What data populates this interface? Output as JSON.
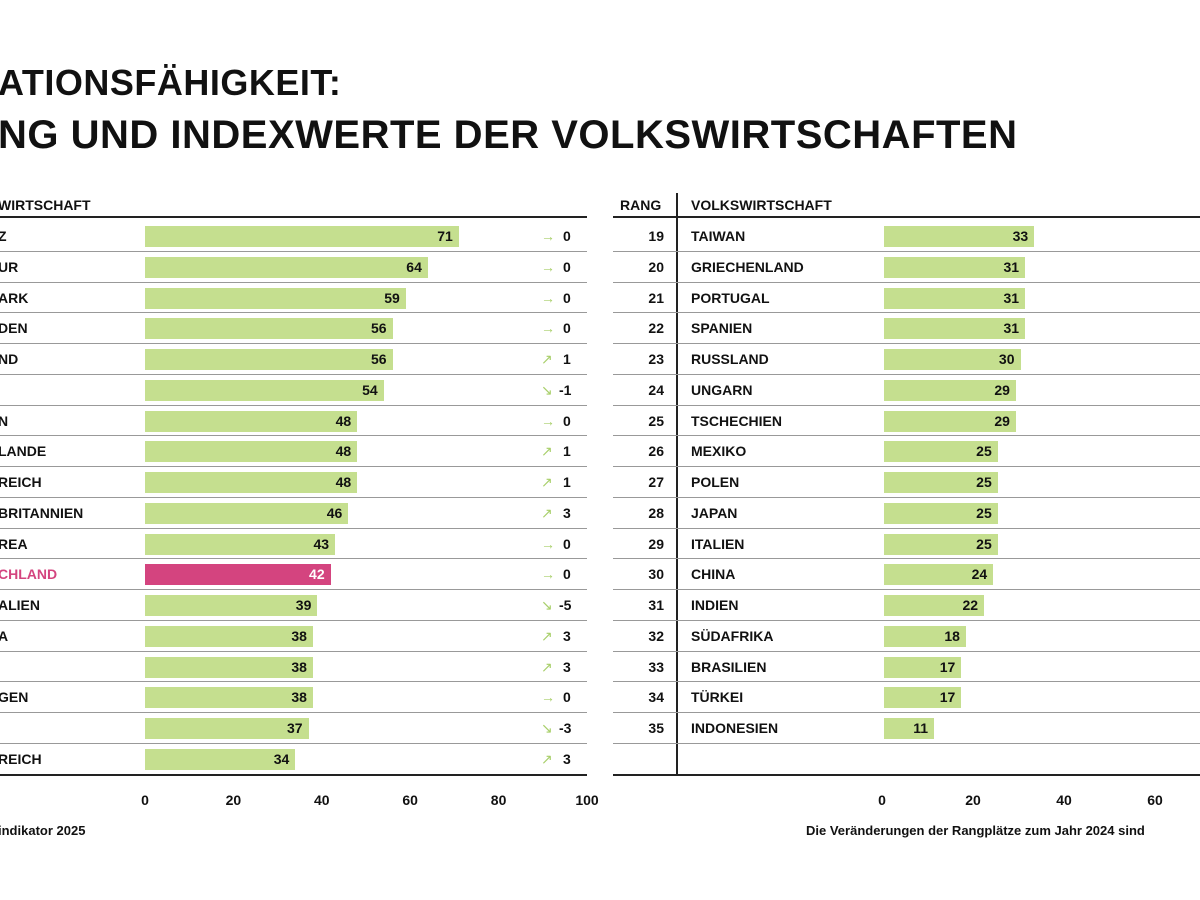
{
  "title": {
    "line1": "ATIONSFÄHIGKEIT:",
    "line2": "NG UND INDEXWERTE DER VOLKSWIRTSCHAFTEN"
  },
  "left_table": {
    "header_economy": "WIRTSCHAFT"
  },
  "right_table": {
    "header_rank": "RANG",
    "header_economy": "VOLKSWIRTSCHAFT"
  },
  "footer": {
    "left": "indikator 2025",
    "right": "Die Veränderungen der Rangplätze zum Jahr 2024 sind"
  },
  "colors": {
    "bar": "#c5df8f",
    "highlight": "#d4447f",
    "arrow": "#a8cf6a"
  },
  "chart_data": [
    {
      "type": "bar",
      "orientation": "horizontal",
      "xlim": [
        0,
        100
      ],
      "xticks": [
        "0",
        "20",
        "40",
        "60",
        "80",
        "100"
      ],
      "rows": [
        {
          "name": "Z",
          "value": 71,
          "trend": "flat",
          "change": "0"
        },
        {
          "name": "UR",
          "value": 64,
          "trend": "flat",
          "change": "0"
        },
        {
          "name": "ARK",
          "value": 59,
          "trend": "flat",
          "change": "0"
        },
        {
          "name": "DEN",
          "value": 56,
          "trend": "flat",
          "change": "0"
        },
        {
          "name": "ND",
          "value": 56,
          "trend": "up",
          "change": "1"
        },
        {
          "name": "",
          "value": 54,
          "trend": "down",
          "change": "-1"
        },
        {
          "name": "N",
          "value": 48,
          "trend": "flat",
          "change": "0"
        },
        {
          "name": "LANDE",
          "value": 48,
          "trend": "up",
          "change": "1"
        },
        {
          "name": "REICH",
          "value": 48,
          "trend": "up",
          "change": "1"
        },
        {
          "name": "BRITANNIEN",
          "value": 46,
          "trend": "up",
          "change": "3"
        },
        {
          "name": "REA",
          "value": 43,
          "trend": "flat",
          "change": "0"
        },
        {
          "name": "CHLAND",
          "value": 42,
          "trend": "flat",
          "change": "0",
          "highlight": true
        },
        {
          "name": "ALIEN",
          "value": 39,
          "trend": "down",
          "change": "-5"
        },
        {
          "name": "A",
          "value": 38,
          "trend": "up",
          "change": "3"
        },
        {
          "name": "",
          "value": 38,
          "trend": "up",
          "change": "3"
        },
        {
          "name": "GEN",
          "value": 38,
          "trend": "flat",
          "change": "0"
        },
        {
          "name": "",
          "value": 37,
          "trend": "down",
          "change": "-3"
        },
        {
          "name": "REICH",
          "value": 34,
          "trend": "up",
          "change": "3"
        }
      ]
    },
    {
      "type": "bar",
      "orientation": "horizontal",
      "xticks": [
        "0",
        "20",
        "40",
        "60"
      ],
      "rows": [
        {
          "rank": "19",
          "name": "TAIWAN",
          "value": 33
        },
        {
          "rank": "20",
          "name": "GRIECHENLAND",
          "value": 31
        },
        {
          "rank": "21",
          "name": "PORTUGAL",
          "value": 31
        },
        {
          "rank": "22",
          "name": "SPANIEN",
          "value": 31
        },
        {
          "rank": "23",
          "name": "RUSSLAND",
          "value": 30
        },
        {
          "rank": "24",
          "name": "UNGARN",
          "value": 29
        },
        {
          "rank": "25",
          "name": "TSCHECHIEN",
          "value": 29
        },
        {
          "rank": "26",
          "name": "MEXIKO",
          "value": 25
        },
        {
          "rank": "27",
          "name": "POLEN",
          "value": 25
        },
        {
          "rank": "28",
          "name": "JAPAN",
          "value": 25
        },
        {
          "rank": "29",
          "name": "ITALIEN",
          "value": 25
        },
        {
          "rank": "30",
          "name": "CHINA",
          "value": 24
        },
        {
          "rank": "31",
          "name": "INDIEN",
          "value": 22
        },
        {
          "rank": "32",
          "name": "SÜDAFRIKA",
          "value": 18
        },
        {
          "rank": "33",
          "name": "BRASILIEN",
          "value": 17
        },
        {
          "rank": "34",
          "name": "TÜRKEI",
          "value": 17
        },
        {
          "rank": "35",
          "name": "INDONESIEN",
          "value": 11
        }
      ]
    }
  ]
}
